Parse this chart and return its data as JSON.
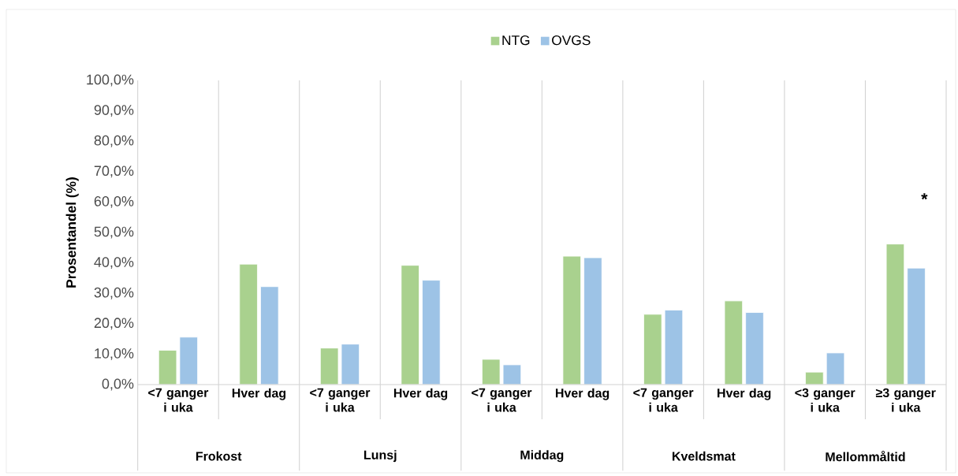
{
  "chart_data": {
    "type": "bar",
    "ylabel": "Prosentandel (%)",
    "categories": [
      "<7 ganger i uka",
      "Hver dag",
      "<7 ganger i uka",
      "Hver dag",
      "<7 ganger i uka",
      "Hver dag",
      "<7 ganger i uka",
      "Hver dag",
      "<3 ganger i uka",
      "≥3 ganger i uka"
    ],
    "series": [
      {
        "name": "NTG",
        "color": "#a9d18e",
        "values": [
          11.3,
          39.6,
          12.0,
          39.2,
          8.3,
          42.2,
          23.1,
          27.5,
          4.1,
          46.2
        ]
      },
      {
        "name": "OVGS",
        "color": "#9dc3e6",
        "values": [
          15.6,
          32.2,
          13.3,
          34.3,
          6.5,
          41.7,
          24.5,
          23.7,
          10.4,
          38.3
        ]
      }
    ],
    "ylim": [
      0,
      100
    ],
    "yticks": [
      {
        "value": 0,
        "label": "0,0%"
      },
      {
        "value": 10,
        "label": "10,0%"
      },
      {
        "value": 20,
        "label": "20,0%"
      },
      {
        "value": 30,
        "label": "30,0%"
      },
      {
        "value": 40,
        "label": "40,0%"
      },
      {
        "value": 50,
        "label": "50,0%"
      },
      {
        "value": 60,
        "label": "60,0%"
      },
      {
        "value": 70,
        "label": "70,0%"
      },
      {
        "value": 80,
        "label": "80,0%"
      },
      {
        "value": 90,
        "label": "90,0%"
      },
      {
        "value": 100,
        "label": "100,0%"
      }
    ],
    "annotations": [
      "Frokost",
      "Lunsj",
      "Middag",
      "Kveldsmat",
      "Mellommåltid",
      "*"
    ],
    "grid": false,
    "legend": "top"
  }
}
